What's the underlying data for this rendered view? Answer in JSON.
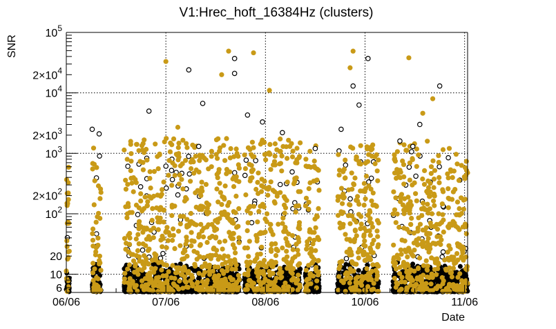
{
  "chart_data": {
    "type": "scatter",
    "title": "V1:Hrec_hoft_16384Hz (clusters)",
    "xlabel": "Date",
    "ylabel": "SNR",
    "yscale": "log",
    "ylim": [
      5,
      100000
    ],
    "xlim": [
      0,
      4.03
    ],
    "grid": true,
    "x_ticks": [
      {
        "value": 0,
        "label": "06/06"
      },
      {
        "value": 1,
        "label": "07/06"
      },
      {
        "value": 2,
        "label": "08/06"
      },
      {
        "value": 3,
        "label": "10/06"
      },
      {
        "value": 4,
        "label": "11/06"
      }
    ],
    "y_ticks": [
      {
        "value": 6,
        "base": "6",
        "exp": ""
      },
      {
        "value": 10,
        "base": "10",
        "exp": ""
      },
      {
        "value": 20,
        "base": "20",
        "exp": ""
      },
      {
        "value": 100,
        "base": "10",
        "exp": "2"
      },
      {
        "value": 200,
        "base": "2×10",
        "exp": "2"
      },
      {
        "value": 1000,
        "base": "10",
        "exp": "3"
      },
      {
        "value": 2000,
        "base": "2×10",
        "exp": "3"
      },
      {
        "value": 10000,
        "base": "10",
        "exp": "4"
      },
      {
        "value": 20000,
        "base": "2×10",
        "exp": "4"
      },
      {
        "value": 100000,
        "base": "10",
        "exp": "5"
      }
    ],
    "colors": {
      "selected": "#c99a17",
      "all": "#000000"
    },
    "data_segments": [
      {
        "x": [
          0.0,
          0.03
        ],
        "gold_max": 600
      },
      {
        "x": [
          0.26,
          0.35
        ],
        "gold_max": 1300
      },
      {
        "x": [
          0.58,
          1.74
        ],
        "gold_max": 1800
      },
      {
        "x": [
          1.79,
          2.35
        ],
        "gold_max": 1800
      },
      {
        "x": [
          2.4,
          2.54
        ],
        "gold_max": 1600
      },
      {
        "x": [
          2.72,
          3.14
        ],
        "gold_max": 1400
      },
      {
        "x": [
          3.28,
          4.03
        ],
        "gold_max": 1700
      }
    ],
    "outliers_filled": [
      {
        "x": 1.0,
        "y": 33000
      },
      {
        "x": 1.63,
        "y": 49000
      },
      {
        "x": 1.88,
        "y": 46000
      },
      {
        "x": 2.88,
        "y": 49000
      },
      {
        "x": 3.44,
        "y": 38000
      },
      {
        "x": 1.56,
        "y": 20000
      },
      {
        "x": 2.04,
        "y": 11000
      },
      {
        "x": 3.68,
        "y": 8000
      },
      {
        "x": 3.58,
        "y": 4600
      },
      {
        "x": 1.12,
        "y": 2700
      },
      {
        "x": 2.85,
        "y": 26000
      }
    ],
    "outliers_hollow": [
      {
        "x": 1.23,
        "y": 24000
      },
      {
        "x": 1.69,
        "y": 37000
      },
      {
        "x": 1.69,
        "y": 21000
      },
      {
        "x": 2.88,
        "y": 13000
      },
      {
        "x": 3.03,
        "y": 37000
      },
      {
        "x": 3.75,
        "y": 13000
      },
      {
        "x": 0.83,
        "y": 5000
      },
      {
        "x": 1.37,
        "y": 6700
      },
      {
        "x": 0.26,
        "y": 2500
      },
      {
        "x": 0.33,
        "y": 2100
      },
      {
        "x": 1.82,
        "y": 4300
      },
      {
        "x": 1.97,
        "y": 3300
      },
      {
        "x": 2.17,
        "y": 2200
      },
      {
        "x": 2.76,
        "y": 2500
      },
      {
        "x": 2.94,
        "y": 6300
      },
      {
        "x": 3.55,
        "y": 3000
      },
      {
        "x": 3.35,
        "y": 1600
      },
      {
        "x": 3.48,
        "y": 1300
      },
      {
        "x": 2.5,
        "y": 1200
      },
      {
        "x": 1.33,
        "y": 1300
      }
    ]
  }
}
